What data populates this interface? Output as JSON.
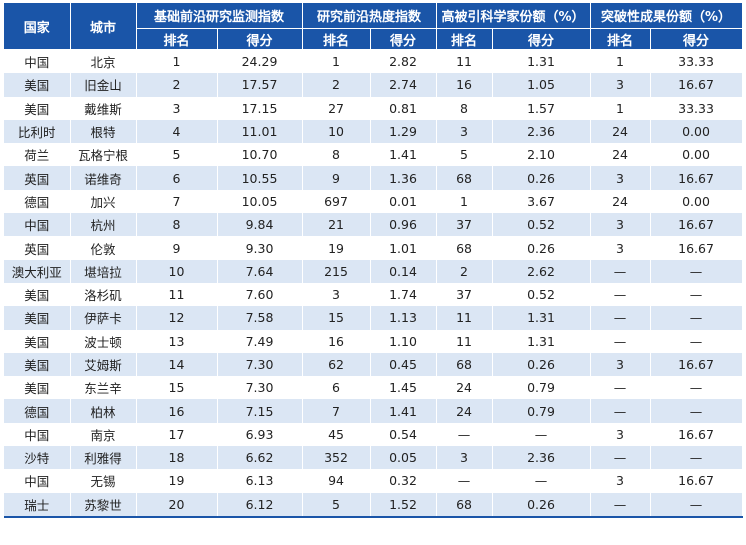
{
  "headers": {
    "country": "国家",
    "city": "城市",
    "groups": [
      "基础前沿研究监测指数",
      "研究前沿热度指数",
      "高被引科学家份额（%）",
      "突破性成果份额（%）"
    ],
    "rank": "排名",
    "score": "得分"
  },
  "rows": [
    [
      "中国",
      "北京",
      "1",
      "24.29",
      "1",
      "2.82",
      "11",
      "1.31",
      "1",
      "33.33"
    ],
    [
      "美国",
      "旧金山",
      "2",
      "17.57",
      "2",
      "2.74",
      "16",
      "1.05",
      "3",
      "16.67"
    ],
    [
      "美国",
      "戴维斯",
      "3",
      "17.15",
      "27",
      "0.81",
      "8",
      "1.57",
      "1",
      "33.33"
    ],
    [
      "比利时",
      "根特",
      "4",
      "11.01",
      "10",
      "1.29",
      "3",
      "2.36",
      "24",
      "0.00"
    ],
    [
      "荷兰",
      "瓦格宁根",
      "5",
      "10.70",
      "8",
      "1.41",
      "5",
      "2.10",
      "24",
      "0.00"
    ],
    [
      "英国",
      "诺维奇",
      "6",
      "10.55",
      "9",
      "1.36",
      "68",
      "0.26",
      "3",
      "16.67"
    ],
    [
      "德国",
      "加兴",
      "7",
      "10.05",
      "697",
      "0.01",
      "1",
      "3.67",
      "24",
      "0.00"
    ],
    [
      "中国",
      "杭州",
      "8",
      "9.84",
      "21",
      "0.96",
      "37",
      "0.52",
      "3",
      "16.67"
    ],
    [
      "英国",
      "伦敦",
      "9",
      "9.30",
      "19",
      "1.01",
      "68",
      "0.26",
      "3",
      "16.67"
    ],
    [
      "澳大利亚",
      "堪培拉",
      "10",
      "7.64",
      "215",
      "0.14",
      "2",
      "2.62",
      "—",
      "—"
    ],
    [
      "美国",
      "洛杉矶",
      "11",
      "7.60",
      "3",
      "1.74",
      "37",
      "0.52",
      "—",
      "—"
    ],
    [
      "美国",
      "伊萨卡",
      "12",
      "7.58",
      "15",
      "1.13",
      "11",
      "1.31",
      "—",
      "—"
    ],
    [
      "美国",
      "波士顿",
      "13",
      "7.49",
      "16",
      "1.10",
      "11",
      "1.31",
      "—",
      "—"
    ],
    [
      "美国",
      "艾姆斯",
      "14",
      "7.30",
      "62",
      "0.45",
      "68",
      "0.26",
      "3",
      "16.67"
    ],
    [
      "美国",
      "东兰辛",
      "15",
      "7.30",
      "6",
      "1.45",
      "24",
      "0.79",
      "—",
      "—"
    ],
    [
      "德国",
      "柏林",
      "16",
      "7.15",
      "7",
      "1.41",
      "24",
      "0.79",
      "—",
      "—"
    ],
    [
      "中国",
      "南京",
      "17",
      "6.93",
      "45",
      "0.54",
      "—",
      "—",
      "3",
      "16.67"
    ],
    [
      "沙特",
      "利雅得",
      "18",
      "6.62",
      "352",
      "0.05",
      "3",
      "2.36",
      "—",
      "—"
    ],
    [
      "中国",
      "无锡",
      "19",
      "6.13",
      "94",
      "0.32",
      "—",
      "—",
      "3",
      "16.67"
    ],
    [
      "瑞士",
      "苏黎世",
      "20",
      "6.12",
      "5",
      "1.52",
      "68",
      "0.26",
      "—",
      "—"
    ]
  ]
}
